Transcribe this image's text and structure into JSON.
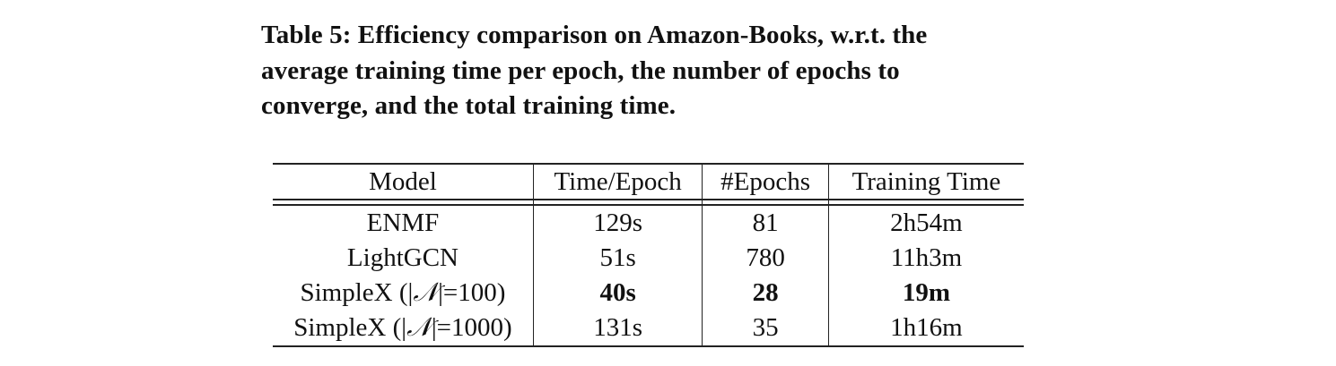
{
  "caption": {
    "lines": [
      "Table 5: Efficiency comparison on Amazon-Books, w.r.t. the",
      "average training time per epoch, the number of epochs to",
      "converge, and the total training time."
    ]
  },
  "table": {
    "headers": [
      "Model",
      "Time/Epoch",
      "#Epochs",
      "Training Time"
    ],
    "rows": [
      {
        "model": "ENMF",
        "time_epoch": "129s",
        "epochs": "81",
        "training_time": "2h54m"
      },
      {
        "model": "LightGCN",
        "time_epoch": "51s",
        "epochs": "780",
        "training_time": "11h3m"
      },
      {
        "model_prefix": "SimpleX (|",
        "model_symbol": "𝒩",
        "model_suffix": "|=100)",
        "time_epoch": "40s",
        "epochs": "28",
        "training_time": "19m",
        "best": true
      },
      {
        "model_prefix": "SimpleX (|",
        "model_symbol": "𝒩",
        "model_suffix": "|=1000)",
        "time_epoch": "131s",
        "epochs": "35",
        "training_time": "1h16m"
      }
    ]
  }
}
